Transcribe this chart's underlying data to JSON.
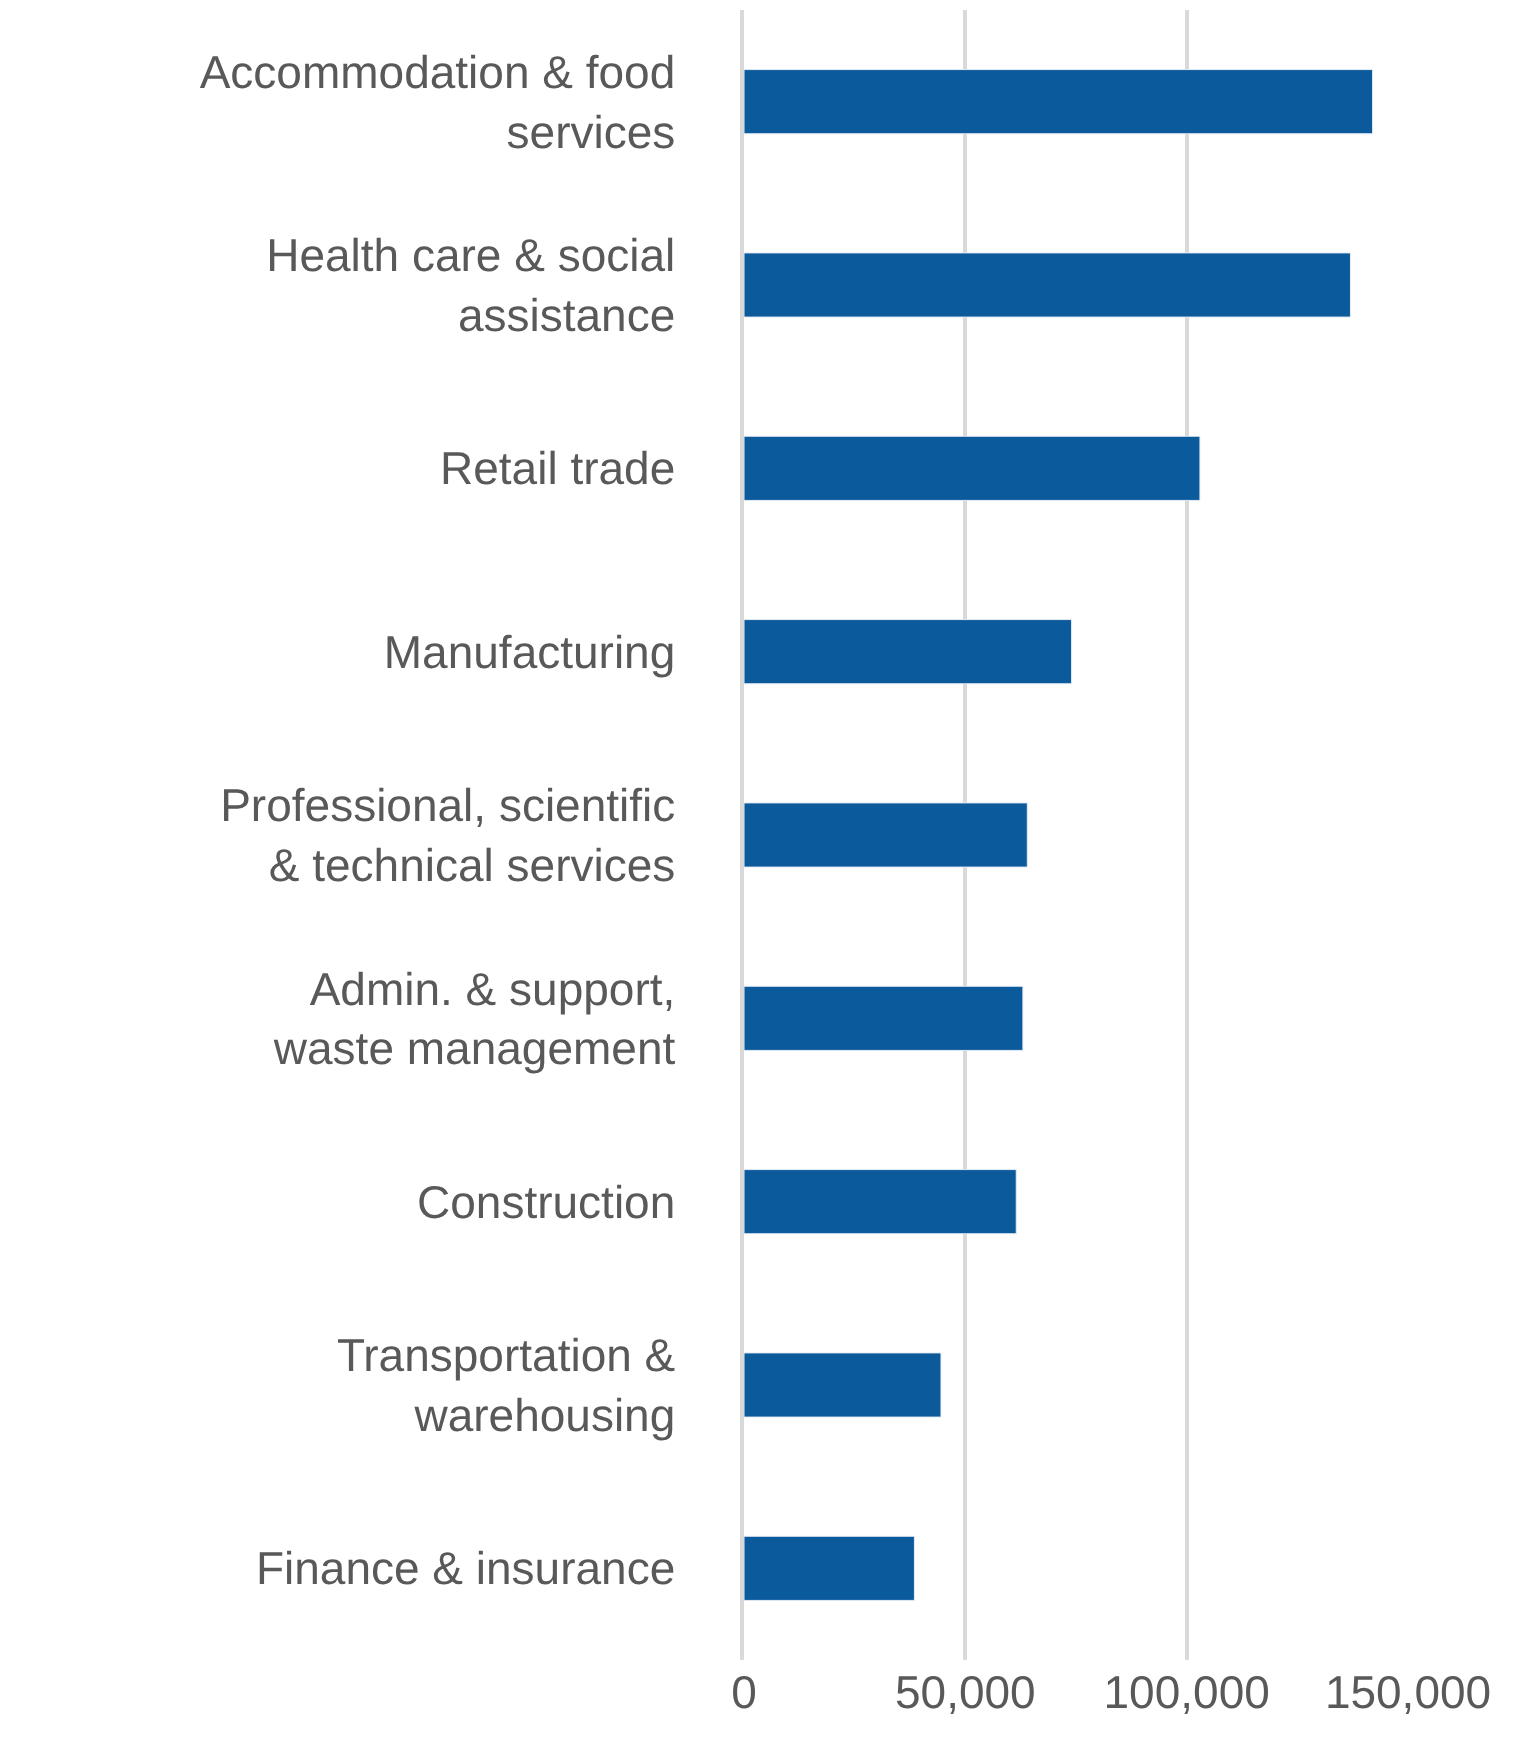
{
  "chart_data": {
    "type": "bar",
    "orientation": "horizontal",
    "categories": [
      "Accommodation & food\nservices",
      "Health care & social\nassistance",
      "Retail trade",
      "Manufacturing",
      "Professional, scientific\n& technical services",
      "Admin. & support,\nwaste management",
      "Construction",
      "Transportation &\nwarehousing",
      "Finance & insurance"
    ],
    "values": [
      142000,
      137000,
      103000,
      74000,
      64000,
      63000,
      61500,
      44500,
      38500
    ],
    "color": "#0b5a9b",
    "xlim": [
      0,
      150000
    ],
    "xticks": [
      {
        "value": 0,
        "label": "0"
      },
      {
        "value": 50000,
        "label": "50,000"
      },
      {
        "value": 100000,
        "label": "100,000"
      },
      {
        "value": 150000,
        "label": "150,000"
      }
    ],
    "grid": "x",
    "legend": false
  }
}
